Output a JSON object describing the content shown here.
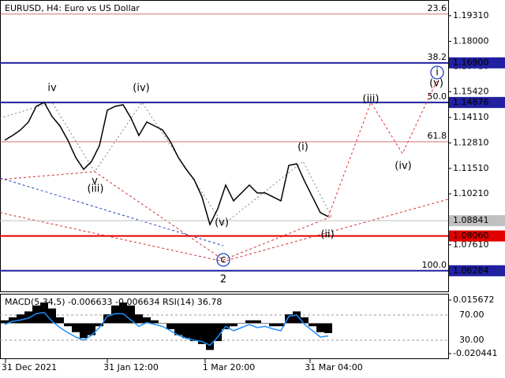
{
  "chart_data": [
    {
      "type": "line",
      "title": "EURUSD, H4:  Euro vs US Dollar",
      "x_labels": [
        "31 Dec 2021",
        "31 Jan 12:00",
        "1 Mar 20:00",
        "31 Mar 04:00"
      ],
      "series": [
        {
          "name": "EURUSD",
          "color": "#000000",
          "values": [
            1.12952,
            1.13193,
            1.13475,
            1.13877,
            1.14682,
            1.14883,
            1.14159,
            1.13676,
            1.12952,
            1.12066,
            1.11463,
            1.11865,
            1.1267,
            1.14481,
            1.14682,
            1.14763,
            1.14079,
            1.13193,
            1.13877,
            1.13676,
            1.13475,
            1.12871,
            1.12066,
            1.11463,
            1.1094,
            1.10054,
            1.08646,
            1.09451,
            1.10658,
            1.09853,
            1.10256,
            1.10658,
            1.10256,
            1.10256,
            1.10054,
            1.09853,
            1.11664,
            1.11745,
            1.10859,
            1.10054,
            1.0925,
            1.09048
          ]
        }
      ],
      "forecast": {
        "color": "#e03030",
        "values": [
          1.09048,
          1.14883,
          1.12268,
          1.16091
        ]
      },
      "ylim": [
        1.0523,
        1.2011
      ],
      "yticks": [
        {
          "value": 1.1931,
          "label": "1.19310"
        },
        {
          "value": 1.18,
          "label": "1.18000"
        },
        {
          "value": 1.1671,
          "label": "1.16710"
        },
        {
          "value": 1.1542,
          "label": "1.15420"
        },
        {
          "value": 1.1411,
          "label": "1.14110"
        },
        {
          "value": 1.1281,
          "label": "1.12810"
        },
        {
          "value": 1.1151,
          "label": "1.11510"
        },
        {
          "value": 1.1021,
          "label": "1.10210"
        },
        {
          "value": 1.0761,
          "label": "1.07610"
        }
      ],
      "levels": [
        {
          "value": 1.169,
          "label": "1.16900",
          "color": "#2020a0"
        },
        {
          "value": 1.14876,
          "label": "1.14876",
          "color": "#2020a0"
        },
        {
          "value": 1.0884,
          "label": "1.08841",
          "color": "#c0c0c0"
        },
        {
          "value": 1.0806,
          "label": "1.08060",
          "color": "#e00000"
        },
        {
          "value": 1.06284,
          "label": "1.06284",
          "color": "#2020a0"
        }
      ],
      "fib_levels": [
        {
          "value": 1.1939,
          "label": "23.6"
        },
        {
          "value": 1.169,
          "label": "38.2"
        },
        {
          "value": 1.14876,
          "label": "50.0"
        },
        {
          "value": 1.12871,
          "label": "61.8"
        },
        {
          "value": 1.06284,
          "label": "100.0"
        }
      ],
      "annotations": [
        {
          "text": "iv",
          "color": "#808080"
        },
        {
          "text": "v",
          "color": "#808080"
        },
        {
          "text": "(iii)",
          "color": "#d03030"
        },
        {
          "text": "(iv)",
          "color": "#d03030"
        },
        {
          "text": "(v)",
          "color": "#d03030"
        },
        {
          "text": "c",
          "color": "#2040c0"
        },
        {
          "text": "2",
          "color": "#d03030"
        },
        {
          "text": "(i)",
          "color": "#d03030"
        },
        {
          "text": "(ii)",
          "color": "#d03030"
        },
        {
          "text": "(iii)",
          "color": "#d03030"
        },
        {
          "text": "(iv)",
          "color": "#d03030"
        },
        {
          "text": "(v)",
          "color": "#d03030"
        },
        {
          "text": "i",
          "color": "#2040c0"
        }
      ]
    },
    {
      "type": "bar",
      "title": "MACD(5,34,5) -0.006633 -0.006634 RSI(14) 36.78",
      "series": [
        {
          "name": "MACD",
          "color": "#000000",
          "values": [
            0.002,
            0.004,
            0.006,
            0.008,
            0.012,
            0.014,
            0.01,
            0.004,
            -0.002,
            -0.006,
            -0.01,
            -0.008,
            -0.002,
            0.006,
            0.012,
            0.014,
            0.012,
            0.006,
            0.004,
            0.002,
            0,
            -0.004,
            -0.008,
            -0.01,
            -0.012,
            -0.014,
            -0.018,
            -0.012,
            -0.004,
            -0.002,
            0,
            0.002,
            0.002,
            0,
            -0.002,
            -0.002,
            0.006,
            0.008,
            0.004,
            -0.002,
            -0.006,
            -0.006633
          ]
        },
        {
          "name": "RSI",
          "color": "#1e90ff",
          "axis": "y2",
          "values": [
            55,
            60,
            62,
            65,
            72,
            74,
            60,
            50,
            42,
            35,
            30,
            38,
            50,
            68,
            72,
            72,
            62,
            52,
            58,
            55,
            52,
            45,
            38,
            33,
            30,
            28,
            22,
            35,
            52,
            45,
            50,
            55,
            50,
            52,
            48,
            45,
            68,
            70,
            55,
            45,
            35,
            36.78
          ]
        }
      ],
      "ylim": [
        -0.02363,
        0.01992
      ],
      "yticks": [
        0.015672,
        -0.020441
      ],
      "y2lim": [
        1.25,
        103.75
      ],
      "y2ticks": [
        {
          "value": 70,
          "label": "70.00"
        },
        {
          "value": 30,
          "label": "30.00"
        }
      ]
    }
  ]
}
